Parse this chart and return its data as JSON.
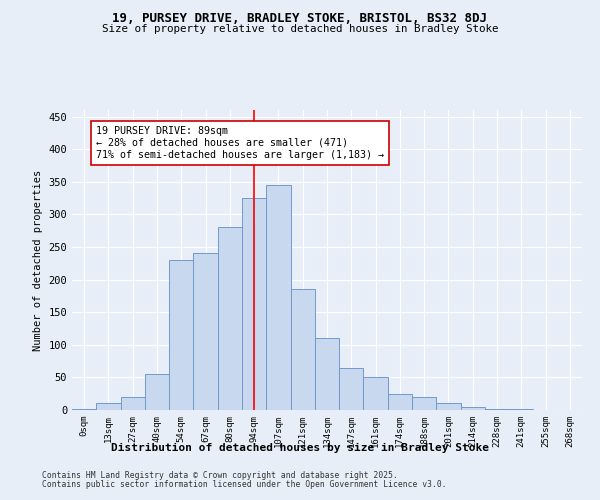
{
  "title1": "19, PURSEY DRIVE, BRADLEY STOKE, BRISTOL, BS32 8DJ",
  "title2": "Size of property relative to detached houses in Bradley Stoke",
  "xlabel": "Distribution of detached houses by size in Bradley Stoke",
  "ylabel": "Number of detached properties",
  "bar_labels": [
    "0sqm",
    "13sqm",
    "27sqm",
    "40sqm",
    "54sqm",
    "67sqm",
    "80sqm",
    "94sqm",
    "107sqm",
    "121sqm",
    "134sqm",
    "147sqm",
    "161sqm",
    "174sqm",
    "188sqm",
    "201sqm",
    "214sqm",
    "228sqm",
    "241sqm",
    "255sqm",
    "268sqm"
  ],
  "bar_values": [
    2,
    10,
    20,
    55,
    230,
    240,
    280,
    325,
    345,
    185,
    110,
    65,
    50,
    25,
    20,
    10,
    5,
    2,
    1,
    0,
    0
  ],
  "bar_color": "#c8d9ef",
  "bar_edge_color": "#7099cc",
  "bg_color": "#e8eef8",
  "grid_color": "#ffffff",
  "red_line_x": 7,
  "annotation_text": "19 PURSEY DRIVE: 89sqm\n← 28% of detached houses are smaller (471)\n71% of semi-detached houses are larger (1,183) →",
  "annotation_box_color": "#ffffff",
  "annotation_box_edge": "#cc0000",
  "footnote1": "Contains HM Land Registry data © Crown copyright and database right 2025.",
  "footnote2": "Contains public sector information licensed under the Open Government Licence v3.0.",
  "ylim": [
    0,
    460
  ],
  "yticks": [
    0,
    50,
    100,
    150,
    200,
    250,
    300,
    350,
    400,
    450
  ]
}
